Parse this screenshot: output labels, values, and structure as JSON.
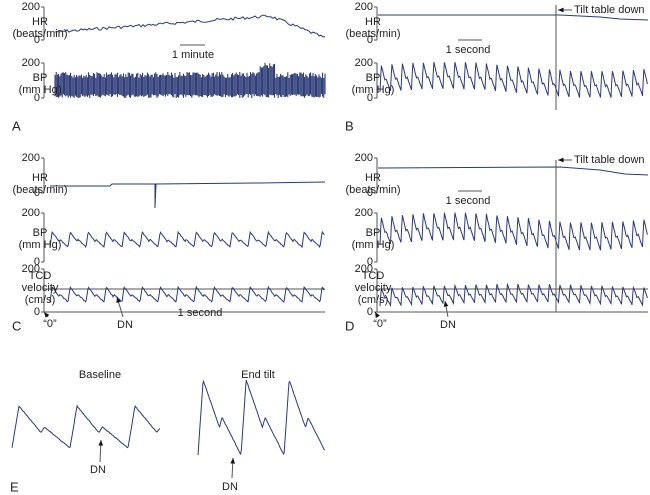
{
  "panels": [
    {
      "letter": "A",
      "traces": [
        {
          "label": [
            "HR",
            "(beats/min)"
          ],
          "ticks": [
            "200",
            "0"
          ]
        },
        {
          "label": [
            "BP",
            "(mm Hg)"
          ],
          "ticks": [
            "200",
            "0"
          ]
        }
      ],
      "scale_bar": "1 minute"
    },
    {
      "letter": "B",
      "traces": [
        {
          "label": [
            "HR",
            "(beats/min)"
          ],
          "ticks": [
            "200",
            "0"
          ]
        },
        {
          "label": [
            "BP",
            "(mm Hg)"
          ],
          "ticks": [
            "200",
            "0"
          ]
        }
      ],
      "scale_bar": "1 second",
      "annotation": "Tilt table down"
    },
    {
      "letter": "C",
      "traces": [
        {
          "label": [
            "HR",
            "(beats/min)"
          ],
          "ticks": [
            "200",
            "0"
          ]
        },
        {
          "label": [
            "BP",
            "(mm Hg)"
          ],
          "ticks": [
            "200",
            "0"
          ]
        },
        {
          "label": [
            "TCD",
            "velocity",
            "(cm/s)"
          ],
          "ticks": [
            "200",
            "0"
          ]
        }
      ],
      "scale_bar": "1 second",
      "markers": [
        "“0”",
        "DN"
      ]
    },
    {
      "letter": "D",
      "traces": [
        {
          "label": [
            "HR",
            "(beats/min)"
          ],
          "ticks": [
            "200",
            "0"
          ]
        },
        {
          "label": [
            "BP",
            "(mm Hg)"
          ],
          "ticks": [
            "200",
            "0"
          ]
        },
        {
          "label": [
            "TCD",
            "velocity",
            "(cm/s)"
          ],
          "ticks": [
            "200",
            "0"
          ]
        }
      ],
      "scale_bar": "1 second",
      "annotation": "Tilt table down",
      "markers": [
        "“0”",
        "DN"
      ]
    },
    {
      "letter": "E",
      "insets": [
        {
          "title": "Baseline",
          "marker": "DN"
        },
        {
          "title": "End tilt",
          "marker": "DN"
        }
      ]
    }
  ]
}
